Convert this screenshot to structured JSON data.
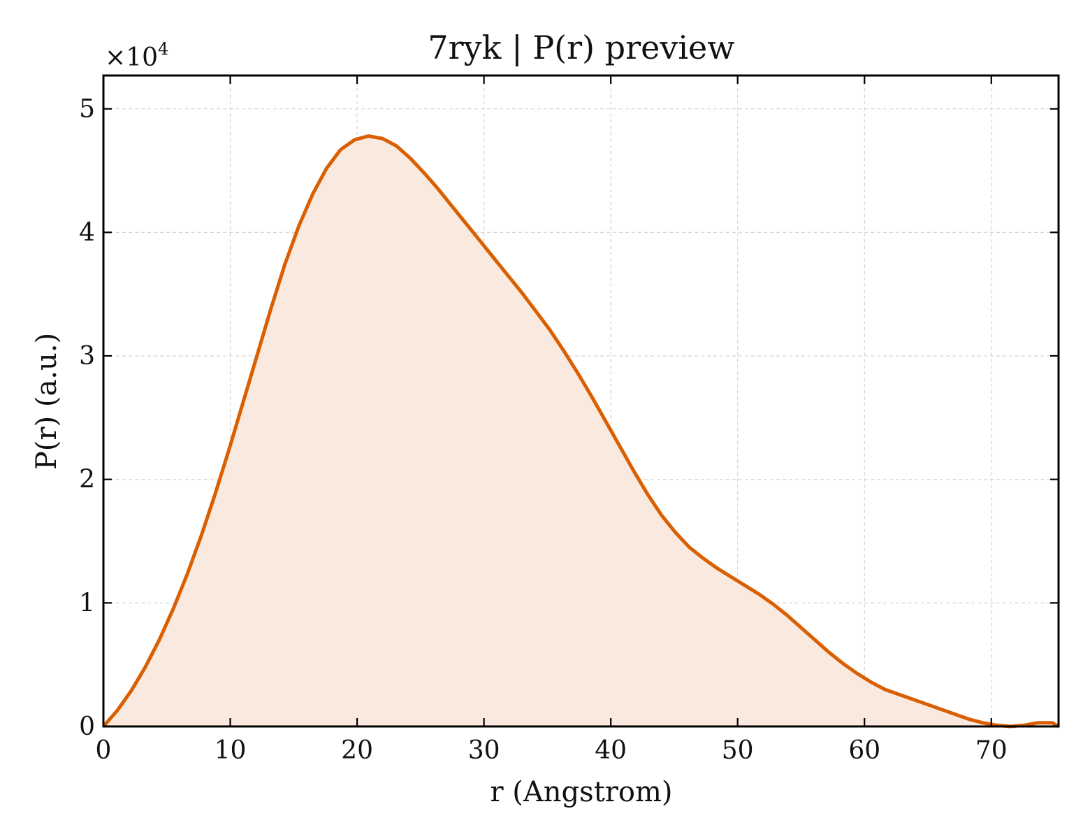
{
  "chart_data": {
    "type": "area",
    "title": "7ryk | P(r) preview",
    "xlabel": "r (Angstrom)",
    "ylabel": "P(r) (a.u.)",
    "y_multiplier_label": "×10",
    "y_multiplier_exponent": "4",
    "xlim": [
      0,
      75.3
    ],
    "ylim": [
      0,
      5.27
    ],
    "xticks": [
      0,
      10,
      20,
      30,
      40,
      50,
      60,
      70
    ],
    "yticks": [
      0,
      1,
      2,
      3,
      4,
      5
    ],
    "grid": true,
    "line_color": "#d95f02",
    "fill_color": "#f9e9de",
    "series": [
      {
        "x": [
          0,
          1.1,
          2.2,
          3.3,
          4.4,
          5.5,
          6.6,
          7.7,
          8.8,
          9.9,
          11.0,
          12.1,
          13.2,
          14.3,
          15.4,
          16.5,
          17.6,
          18.7,
          19.8,
          20.9,
          22.0,
          23.1,
          24.2,
          25.3,
          26.4,
          27.5,
          28.6,
          29.7,
          30.8,
          31.9,
          33.0,
          34.1,
          35.2,
          36.3,
          37.4,
          38.5,
          39.6,
          40.7,
          41.8,
          42.9,
          44.0,
          45.1,
          46.2,
          47.3,
          48.4,
          49.5,
          50.6,
          51.7,
          52.8,
          53.9,
          55.0,
          56.1,
          57.2,
          58.3,
          59.4,
          60.5,
          61.6,
          62.7,
          63.8,
          64.9,
          66.0,
          67.1,
          68.2,
          69.3,
          70.4,
          71.5,
          72.6,
          73.7,
          74.8,
          75.3
        ],
        "y": [
          0,
          0.13,
          0.29,
          0.48,
          0.7,
          0.95,
          1.23,
          1.54,
          1.88,
          2.24,
          2.62,
          3.0,
          3.38,
          3.74,
          4.05,
          4.31,
          4.52,
          4.67,
          4.75,
          4.78,
          4.76,
          4.7,
          4.6,
          4.48,
          4.35,
          4.21,
          4.07,
          3.93,
          3.79,
          3.65,
          3.51,
          3.36,
          3.21,
          3.04,
          2.86,
          2.67,
          2.47,
          2.27,
          2.07,
          1.88,
          1.71,
          1.57,
          1.45,
          1.36,
          1.28,
          1.21,
          1.14,
          1.07,
          0.99,
          0.9,
          0.8,
          0.7,
          0.6,
          0.51,
          0.43,
          0.36,
          0.3,
          0.26,
          0.22,
          0.18,
          0.14,
          0.1,
          0.06,
          0.03,
          0.01,
          0.0,
          0.01,
          0.03,
          0.03,
          0.0
        ]
      }
    ]
  }
}
